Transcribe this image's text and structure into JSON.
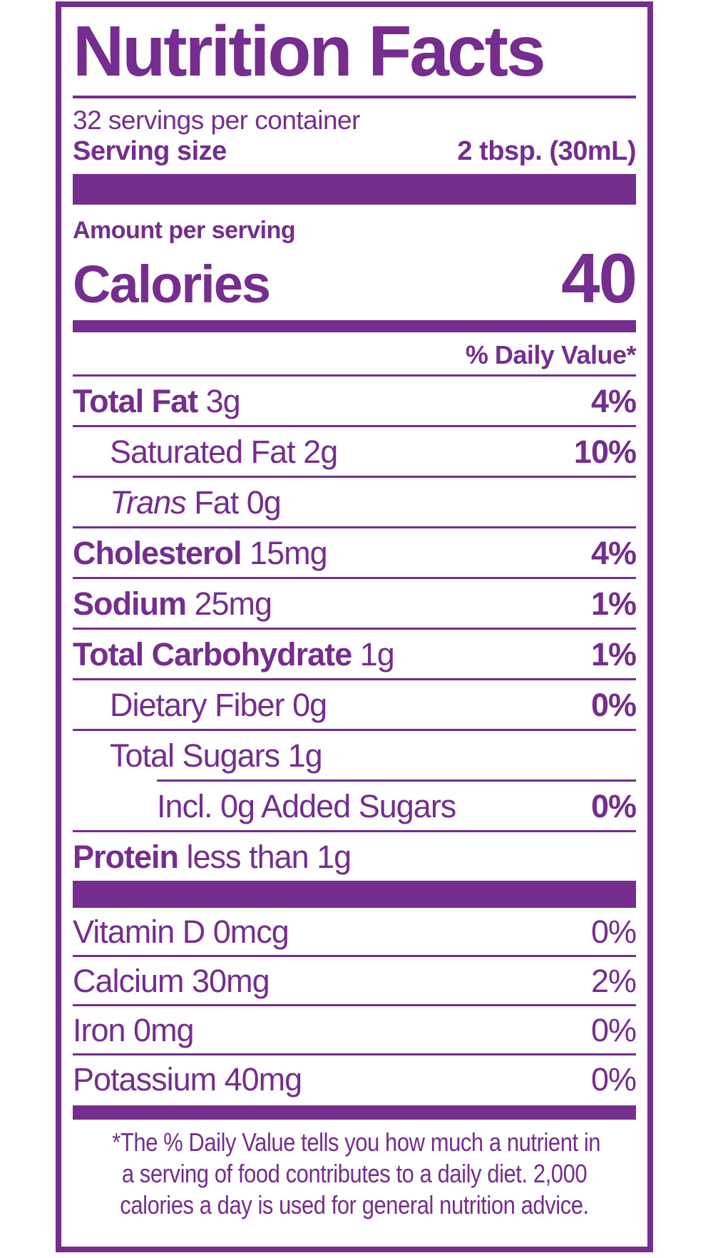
{
  "colors": {
    "purple": "#752d8e",
    "background": "#ffffff"
  },
  "header": {
    "title": "Nutrition Facts",
    "servings_per_container": "32 servings per container",
    "serving_size_label": "Serving size",
    "serving_size_value": "2 tbsp. (30mL)"
  },
  "calories": {
    "amount_per_serving_label": "Amount per serving",
    "label": "Calories",
    "value": "40"
  },
  "daily_value_header": "% Daily Value*",
  "nutrient_rows": [
    {
      "segments": [
        {
          "text": "Total Fat",
          "style": "bold"
        },
        {
          "text": " 3g",
          "style": "regular"
        }
      ],
      "percent": "4%",
      "percent_bold": true,
      "indent": 0,
      "divider": "full"
    },
    {
      "segments": [
        {
          "text": "Saturated Fat 2g",
          "style": "regular"
        }
      ],
      "percent": "10%",
      "percent_bold": true,
      "indent": 1,
      "divider": "full"
    },
    {
      "segments": [
        {
          "text": "Trans",
          "style": "italic"
        },
        {
          "text": " Fat 0g",
          "style": "regular"
        }
      ],
      "percent": "",
      "percent_bold": false,
      "indent": 1,
      "divider": "full"
    },
    {
      "segments": [
        {
          "text": "Cholesterol",
          "style": "bold"
        },
        {
          "text": " 15mg",
          "style": "regular"
        }
      ],
      "percent": "4%",
      "percent_bold": true,
      "indent": 0,
      "divider": "full"
    },
    {
      "segments": [
        {
          "text": "Sodium",
          "style": "bold"
        },
        {
          "text": " 25mg",
          "style": "regular"
        }
      ],
      "percent": "1%",
      "percent_bold": true,
      "indent": 0,
      "divider": "full"
    },
    {
      "segments": [
        {
          "text": "Total Carbohydrate",
          "style": "bold"
        },
        {
          "text": " 1g",
          "style": "regular"
        }
      ],
      "percent": "1%",
      "percent_bold": true,
      "indent": 0,
      "divider": "full"
    },
    {
      "segments": [
        {
          "text": "Dietary Fiber 0g",
          "style": "regular"
        }
      ],
      "percent": "0%",
      "percent_bold": true,
      "indent": 1,
      "divider": "full"
    },
    {
      "segments": [
        {
          "text": "Total Sugars 1g",
          "style": "regular"
        }
      ],
      "percent": "",
      "percent_bold": false,
      "indent": 1,
      "divider": "indented"
    },
    {
      "segments": [
        {
          "text": "Incl. 0g Added Sugars",
          "style": "regular"
        }
      ],
      "percent": "0%",
      "percent_bold": true,
      "indent": 2,
      "divider": "full"
    },
    {
      "segments": [
        {
          "text": "Protein",
          "style": "bold"
        },
        {
          "text": " less than 1g",
          "style": "regular"
        }
      ],
      "percent": "",
      "percent_bold": false,
      "indent": 0,
      "divider": "none"
    }
  ],
  "vitamin_rows": [
    {
      "segments": [
        {
          "text": "Vitamin D 0mcg",
          "style": "regular"
        }
      ],
      "percent": "0%",
      "percent_bold": false,
      "indent": 0,
      "divider": "full"
    },
    {
      "segments": [
        {
          "text": "Calcium 30mg",
          "style": "regular"
        }
      ],
      "percent": "2%",
      "percent_bold": false,
      "indent": 0,
      "divider": "full"
    },
    {
      "segments": [
        {
          "text": "Iron 0mg",
          "style": "regular"
        }
      ],
      "percent": "0%",
      "percent_bold": false,
      "indent": 0,
      "divider": "full"
    },
    {
      "segments": [
        {
          "text": "Potassium 40mg",
          "style": "regular"
        }
      ],
      "percent": "0%",
      "percent_bold": false,
      "indent": 0,
      "divider": "none"
    }
  ],
  "footnote": {
    "lines": [
      "*The % Daily Value tells you how much a nutrient in",
      "a serving of food contributes to a daily diet. 2,000",
      "calories a day is used for general nutrition advice."
    ]
  }
}
